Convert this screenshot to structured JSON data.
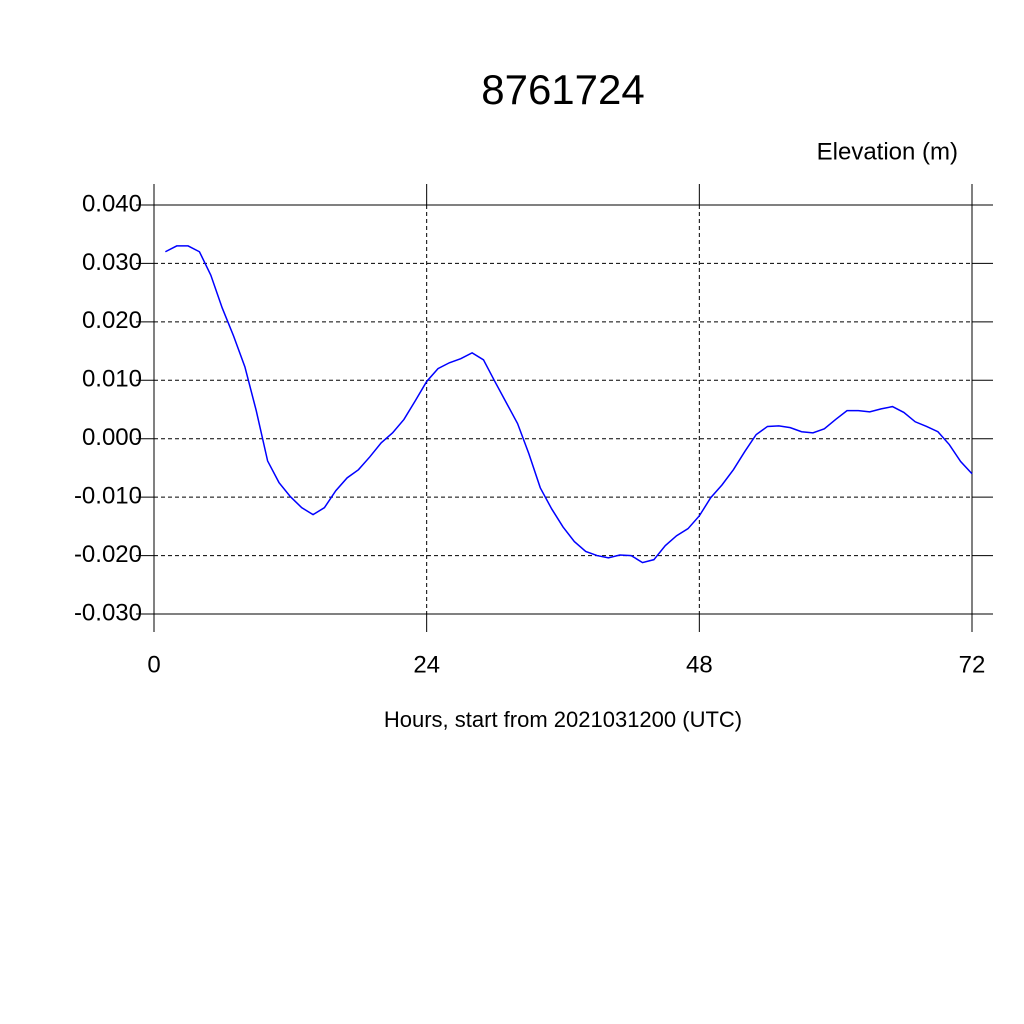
{
  "chart_data": {
    "type": "line",
    "title": "8761724",
    "y_label": "Elevation (m)",
    "x_label": "Hours, start from 2021031200 (UTC)",
    "x": [
      1,
      2,
      3,
      4,
      5,
      6,
      7,
      8,
      9,
      10,
      11,
      12,
      13,
      14,
      15,
      16,
      17,
      18,
      19,
      20,
      21,
      22,
      23,
      24,
      25,
      26,
      27,
      28,
      29,
      30,
      31,
      32,
      33,
      34,
      35,
      36,
      37,
      38,
      39,
      40,
      41,
      42,
      43,
      44,
      45,
      46,
      47,
      48,
      49,
      50,
      51,
      52,
      53,
      54,
      55,
      56,
      57,
      58,
      59,
      60,
      61,
      62,
      63,
      64,
      65,
      66,
      67,
      68,
      69,
      70,
      71,
      72
    ],
    "series": [
      {
        "name": "Elevation",
        "color": "#0000ff",
        "values": [
          0.032,
          0.033,
          0.033,
          0.032,
          0.028,
          0.0224,
          0.0176,
          0.0123,
          0.0048,
          -0.0038,
          -0.0075,
          -0.0099,
          -0.0118,
          -0.013,
          -0.0118,
          -0.0089,
          -0.0067,
          -0.0053,
          -0.0031,
          -0.0007,
          0.001,
          0.0033,
          0.0065,
          0.0098,
          0.012,
          0.013,
          0.0137,
          0.0147,
          0.0135,
          0.0098,
          0.0062,
          0.0026,
          -0.0026,
          -0.0084,
          -0.012,
          -0.0151,
          -0.0176,
          -0.0193,
          -0.02,
          -0.0204,
          -0.0199,
          -0.02,
          -0.0212,
          -0.0207,
          -0.0183,
          -0.0166,
          -0.0154,
          -0.0132,
          -0.0101,
          -0.0079,
          -0.0053,
          -0.0022,
          0.0007,
          0.0021,
          0.0022,
          0.0019,
          0.0012,
          0.001,
          0.0017,
          0.0033,
          0.0048,
          0.0048,
          0.0046,
          0.0051,
          0.0055,
          0.0045,
          0.0029,
          0.0021,
          0.0012,
          -0.001,
          -0.0039,
          -0.006
        ]
      }
    ],
    "xlim": [
      0,
      72
    ],
    "xticks": [
      0,
      24,
      48,
      72
    ],
    "ylim": [
      -0.03,
      0.04
    ],
    "yticks": [
      {
        "value": -0.03,
        "label": "-0.030"
      },
      {
        "value": -0.02,
        "label": "-0.020"
      },
      {
        "value": -0.01,
        "label": "-0.010"
      },
      {
        "value": 0,
        "label": "0.000"
      },
      {
        "value": 0.01,
        "label": "0.010"
      },
      {
        "value": 0.02,
        "label": "0.020"
      },
      {
        "value": 0.03,
        "label": "0.030"
      },
      {
        "value": 0.04,
        "label": "0.040"
      }
    ],
    "grid": true
  }
}
